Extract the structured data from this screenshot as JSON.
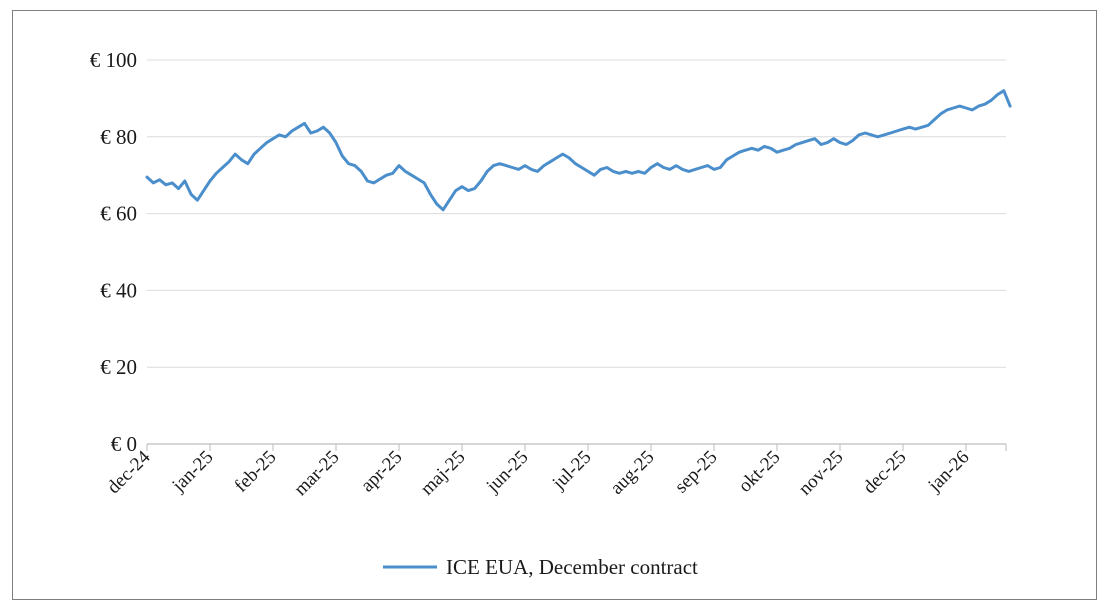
{
  "chart_data": {
    "type": "line",
    "title": "",
    "xlabel": "",
    "ylabel": "",
    "ylim": [
      0,
      100
    ],
    "y_ticks": [
      {
        "value": 0,
        "label": "€ 0"
      },
      {
        "value": 20,
        "label": "€ 20"
      },
      {
        "value": 40,
        "label": "€ 40"
      },
      {
        "value": 60,
        "label": "€ 60"
      },
      {
        "value": 80,
        "label": "€ 80"
      },
      {
        "value": 100,
        "label": "€ 100"
      }
    ],
    "x_tick_labels": [
      "dec-24",
      "jan-25",
      "feb-25",
      "mar-25",
      "apr-25",
      "maj-25",
      "jun-25",
      "jul-25",
      "aug-25",
      "sep-25",
      "okt-25",
      "nov-25",
      "dec-25",
      "jan-26"
    ],
    "grid": "horizontal",
    "legend_position": "bottom",
    "line_color": "#4a8ecb",
    "series": [
      {
        "name": "ICE EUA, December contract",
        "x": [
          0,
          0.1,
          0.2,
          0.3,
          0.4,
          0.5,
          0.6,
          0.7,
          0.8,
          0.9,
          1,
          1.1,
          1.2,
          1.3,
          1.4,
          1.5,
          1.6,
          1.7,
          1.8,
          1.9,
          2,
          2.1,
          2.2,
          2.3,
          2.4,
          2.5,
          2.6,
          2.7,
          2.8,
          2.9,
          3,
          3.1,
          3.2,
          3.3,
          3.4,
          3.5,
          3.6,
          3.7,
          3.8,
          3.9,
          4,
          4.1,
          4.2,
          4.3,
          4.4,
          4.5,
          4.6,
          4.7,
          4.8,
          4.9,
          5,
          5.1,
          5.2,
          5.3,
          5.4,
          5.5,
          5.6,
          5.7,
          5.8,
          5.9,
          6,
          6.1,
          6.2,
          6.3,
          6.4,
          6.5,
          6.6,
          6.7,
          6.8,
          6.9,
          7,
          7.1,
          7.2,
          7.3,
          7.4,
          7.5,
          7.6,
          7.7,
          7.8,
          7.9,
          8,
          8.1,
          8.2,
          8.3,
          8.4,
          8.5,
          8.6,
          8.7,
          8.8,
          8.9,
          9,
          9.1,
          9.2,
          9.3,
          9.4,
          9.5,
          9.6,
          9.7,
          9.8,
          9.9,
          10,
          10.1,
          10.2,
          10.3,
          10.4,
          10.5,
          10.6,
          10.7,
          10.8,
          10.9,
          11,
          11.1,
          11.2,
          11.3,
          11.4,
          11.5,
          11.6,
          11.7,
          11.8,
          11.9,
          12,
          12.1,
          12.2,
          12.3,
          12.4,
          12.5,
          12.6,
          12.7,
          12.8,
          12.9,
          13,
          13.1,
          13.2,
          13.3,
          13.4,
          13.5,
          13.6,
          13.7
        ],
        "values": [
          69.5,
          68,
          68.8,
          67.5,
          68,
          66.5,
          68.5,
          65,
          63.5,
          66,
          68.5,
          70.5,
          72,
          73.5,
          75.5,
          74,
          73,
          75.5,
          77,
          78.5,
          79.5,
          80.5,
          80,
          81.5,
          82.5,
          83.5,
          81,
          81.5,
          82.5,
          81,
          78.5,
          75,
          73,
          72.5,
          71,
          68.5,
          68,
          69,
          70,
          70.5,
          72.5,
          71,
          70,
          69,
          68,
          65,
          62.5,
          61,
          63.5,
          66,
          67,
          66,
          66.5,
          68.5,
          71,
          72.5,
          73,
          72.5,
          72,
          71.5,
          72.5,
          71.5,
          71,
          72.5,
          73.5,
          74.5,
          75.5,
          74.5,
          73,
          72,
          71,
          70,
          71.5,
          72,
          71,
          70.5,
          71,
          70.5,
          71,
          70.5,
          72,
          73,
          72,
          71.5,
          72.5,
          71.5,
          71,
          71.5,
          72,
          72.5,
          71.5,
          72,
          74,
          75,
          76,
          76.5,
          77,
          76.5,
          77.5,
          77,
          76,
          76.5,
          77,
          78,
          78.5,
          79,
          79.5,
          78,
          78.5,
          79.5,
          78.5,
          78,
          79,
          80.5,
          81,
          80.5,
          80,
          80.5,
          81,
          81.5,
          82,
          82.5,
          82,
          82.5,
          83,
          84.5,
          86,
          87,
          87.5,
          88,
          87.5,
          87,
          88,
          88.5,
          89.5,
          91,
          92,
          88
        ]
      }
    ]
  }
}
